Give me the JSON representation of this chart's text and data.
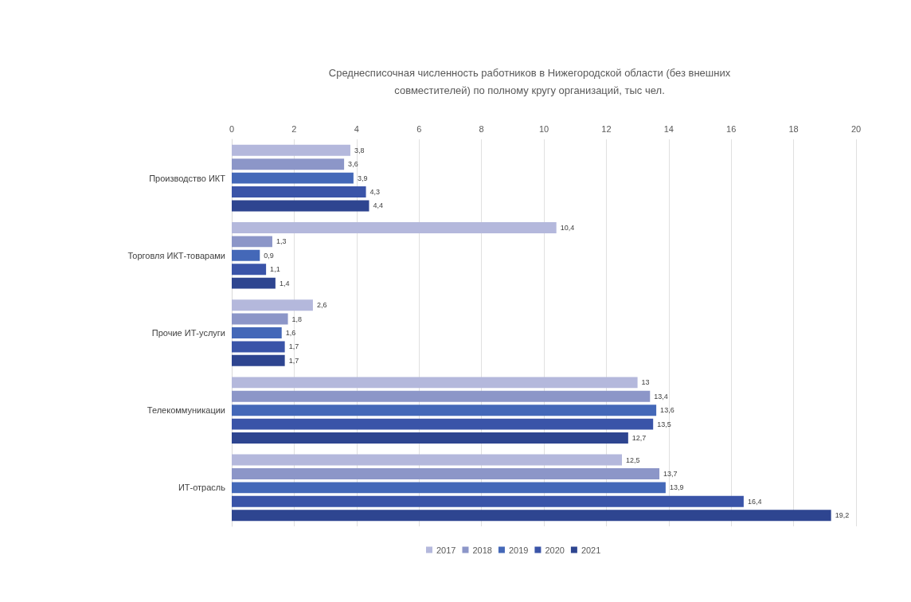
{
  "chart_data": {
    "type": "bar",
    "orientation": "horizontal",
    "title": "Среднесписочная численность работников в Нижегородской области (без внешних\nсовместителей) по полному кругу организаций, тыс чел.",
    "categories": [
      "Производство ИКТ",
      "Торговля ИКТ-товарами",
      "Прочие ИТ-услуги",
      "Телекоммуникации",
      "ИТ-отрасль"
    ],
    "series": [
      {
        "name": "2017",
        "color": "#b4b8dc",
        "values": [
          3.8,
          10.4,
          2.6,
          13,
          12.5
        ],
        "value_labels": [
          "3,8",
          "10,4",
          "2,6",
          "13",
          "12,5"
        ]
      },
      {
        "name": "2018",
        "color": "#8c96c8",
        "values": [
          3.6,
          1.3,
          1.8,
          13.4,
          13.7
        ],
        "value_labels": [
          "3,6",
          "1,3",
          "1,8",
          "13,4",
          "13,7"
        ]
      },
      {
        "name": "2019",
        "color": "#4468b8",
        "values": [
          3.9,
          0.9,
          1.6,
          13.6,
          13.9
        ],
        "value_labels": [
          "3,9",
          "0,9",
          "1,6",
          "13,6",
          "13,9"
        ]
      },
      {
        "name": "2020",
        "color": "#3a54a8",
        "values": [
          4.3,
          1.1,
          1.7,
          13.5,
          16.4
        ],
        "value_labels": [
          "4,3",
          "1,1",
          "1,7",
          "13,5",
          "16,4"
        ]
      },
      {
        "name": "2021",
        "color": "#2e4590",
        "values": [
          4.4,
          1.4,
          1.7,
          12.7,
          19.2
        ],
        "value_labels": [
          "4,4",
          "1,4",
          "1,7",
          "12,7",
          "19,2"
        ]
      }
    ],
    "xlim": [
      0,
      20
    ],
    "xticks": [
      0,
      2,
      4,
      6,
      8,
      10,
      12,
      14,
      16,
      18,
      20
    ],
    "grid": "x",
    "legend": "bottom"
  }
}
